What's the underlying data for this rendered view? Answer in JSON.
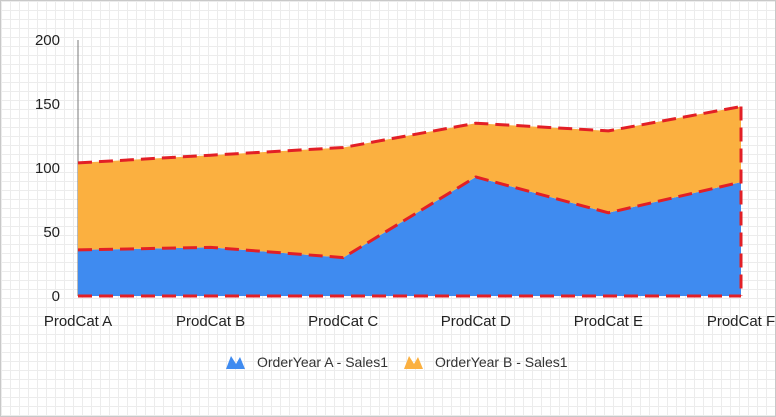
{
  "chart_data": {
    "type": "area",
    "stacked": true,
    "categories": [
      "ProdCat A",
      "ProdCat B",
      "ProdCat C",
      "ProdCat D",
      "ProdCat E",
      "ProdCat F"
    ],
    "series": [
      {
        "name": "OrderYear A - Sales1",
        "values": [
          36,
          38,
          30,
          93,
          65,
          89
        ],
        "color": "#3f8bf0"
      },
      {
        "name": "OrderYear B - Sales1",
        "values": [
          68,
          72,
          86,
          42,
          64,
          59
        ],
        "color": "#fbb040"
      }
    ],
    "outline_color": "#e21f26",
    "ylim": [
      0,
      200
    ],
    "yticks": [
      "0",
      "50",
      "100",
      "150",
      "200"
    ],
    "grid": true,
    "legend_position": "bottom"
  }
}
